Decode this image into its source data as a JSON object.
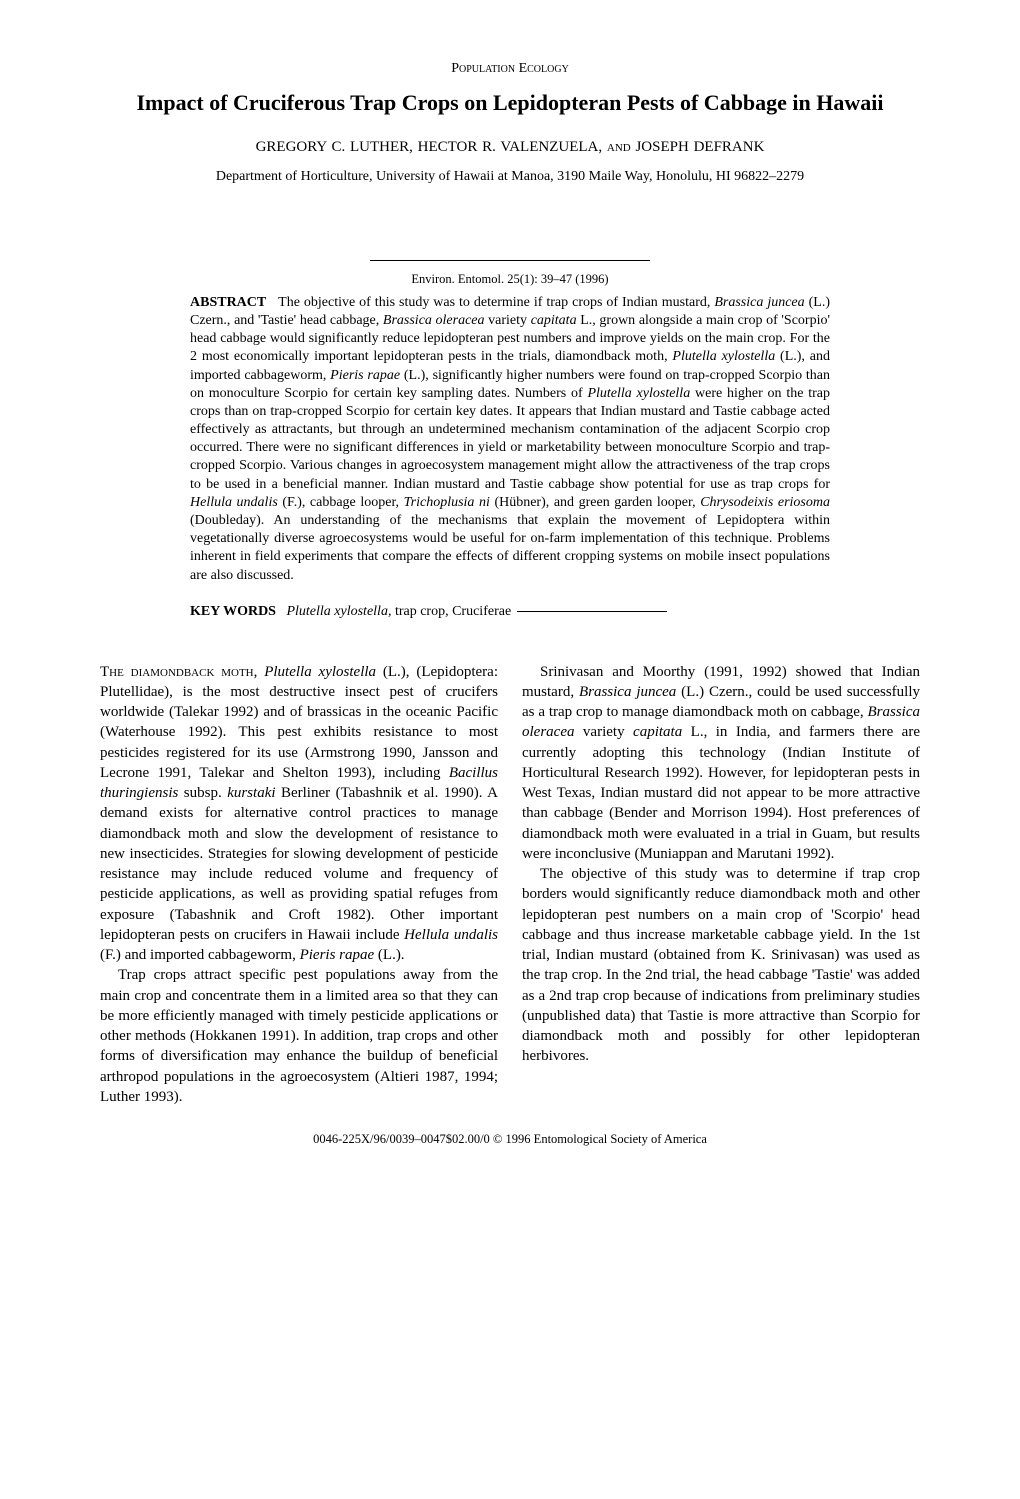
{
  "header": {
    "section_label": "Population Ecology",
    "title": "Impact of Cruciferous Trap Crops on Lepidopteran Pests of Cabbage in Hawaii",
    "authors": "GREGORY C. LUTHER, HECTOR R. VALENZUELA, and JOSEPH DEFRANK",
    "affiliation": "Department of Horticulture, University of Hawaii at Manoa, 3190 Maile Way, Honolulu, HI 96822–2279"
  },
  "citation": "Environ. Entomol. 25(1): 39–47 (1996)",
  "abstract": {
    "label": "ABSTRACT",
    "text": "The objective of this study was to determine if trap crops of Indian mustard, Brassica juncea (L.) Czern., and 'Tastie' head cabbage, Brassica oleracea variety capitata L., grown alongside a main crop of 'Scorpio' head cabbage would significantly reduce lepidopteran pest numbers and improve yields on the main crop. For the 2 most economically important lepidopteran pests in the trials, diamondback moth, Plutella xylostella (L.), and imported cabbageworm, Pieris rapae (L.), significantly higher numbers were found on trap-cropped Scorpio than on monoculture Scorpio for certain key sampling dates. Numbers of Plutella xylostella were higher on the trap crops than on trap-cropped Scorpio for certain key dates. It appears that Indian mustard and Tastie cabbage acted effectively as attractants, but through an undetermined mechanism contamination of the adjacent Scorpio crop occurred. There were no significant differences in yield or marketability between monoculture Scorpio and trap-cropped Scorpio. Various changes in agroecosystem management might allow the attractiveness of the trap crops to be used in a beneficial manner. Indian mustard and Tastie cabbage show potential for use as trap crops for Hellula undalis (F.), cabbage looper, Trichoplusia ni (Hübner), and green garden looper, Chrysodeixis eriosoma (Doubleday). An understanding of the mechanisms that explain the movement of Lepidoptera within vegetationally diverse agroecosystems would be useful for on-farm implementation of this technique. Problems inherent in field experiments that compare the effects of different cropping systems on mobile insect populations are also discussed."
  },
  "keywords": {
    "label": "KEY WORDS",
    "text": "Plutella xylostella, trap crop, Cruciferae"
  },
  "body": {
    "p1": "The diamondback moth, Plutella xylostella (L.), (Lepidoptera: Plutellidae), is the most destructive insect pest of crucifers worldwide (Talekar 1992) and of brassicas in the oceanic Pacific (Waterhouse 1992). This pest exhibits resistance to most pesticides registered for its use (Armstrong 1990, Jansson and Lecrone 1991, Talekar and Shelton 1993), including Bacillus thuringiensis subsp. kurstaki Berliner (Tabashnik et al. 1990). A demand exists for alternative control practices to manage diamondback moth and slow the development of resistance to new insecticides. Strategies for slowing development of pesticide resistance may include reduced volume and frequency of pesticide applications, as well as providing spatial refuges from exposure (Tabashnik and Croft 1982). Other important lepidopteran pests on crucifers in Hawaii include Hellula undalis (F.) and imported cabbageworm, Pieris rapae (L.).",
    "p2": "Trap crops attract specific pest populations away from the main crop and concentrate them in a limited area so that they can be more efficiently managed with timely pesticide applications or other methods (Hokkanen 1991). In addition, trap crops and other forms of diversification may enhance the buildup of beneficial arthropod populations in the agroecosystem (Altieri 1987, 1994; Luther 1993).",
    "p3": "Srinivasan and Moorthy (1991, 1992) showed that Indian mustard, Brassica juncea (L.) Czern., could be used successfully as a trap crop to manage diamondback moth on cabbage, Brassica oleracea variety capitata L., in India, and farmers there are currently adopting this technology (Indian Institute of Horticultural Research 1992). However, for lepidopteran pests in West Texas, Indian mustard did not appear to be more attractive than cabbage (Bender and Morrison 1994). Host preferences of diamondback moth were evaluated in a trial in Guam, but results were inconclusive (Muniappan and Marutani 1992).",
    "p4": "The objective of this study was to determine if trap crop borders would significantly reduce diamondback moth and other lepidopteran pest numbers on a main crop of 'Scorpio' head cabbage and thus increase marketable cabbage yield. In the 1st trial, Indian mustard (obtained from K. Srinivasan) was used as the trap crop. In the 2nd trial, the head cabbage 'Tastie' was added as a 2nd trap crop because of indications from preliminary studies (unpublished data) that Tastie is more attractive than Scorpio for diamondback moth and possibly for other lepidopteran herbivores."
  },
  "copyright": "0046-225X/96/0039–0047$02.00/0 © 1996 Entomological Society of America"
}
